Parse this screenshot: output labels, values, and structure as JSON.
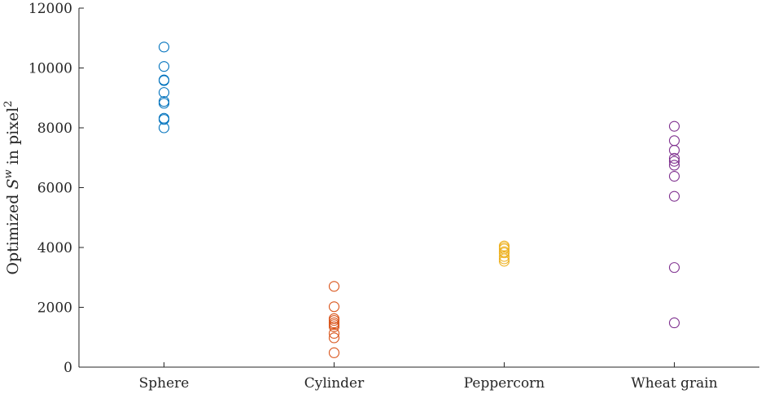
{
  "chart_data": {
    "type": "scatter",
    "categories": [
      "Sphere",
      "Cylinder",
      "Peppercorn",
      "Wheat grain"
    ],
    "ylabel": {
      "pre": "Optimized ",
      "var": "S",
      "sup": "w",
      "mid": " in pixel",
      "exp": "2"
    },
    "ylim": [
      0,
      12000
    ],
    "yticks": [
      0,
      2000,
      4000,
      6000,
      8000,
      10000,
      12000
    ],
    "grid": false,
    "series": [
      {
        "category": "Sphere",
        "color": "#0072BD",
        "values": [
          10700,
          10050,
          9600,
          9580,
          9180,
          8880,
          8820,
          8320,
          8280,
          8000
        ]
      },
      {
        "category": "Cylinder",
        "color": "#D95319",
        "values": [
          2700,
          2020,
          1620,
          1560,
          1480,
          1420,
          1350,
          1130,
          980,
          480
        ]
      },
      {
        "category": "Peppercorn",
        "color": "#EDB120",
        "values": [
          4050,
          4000,
          3950,
          3860,
          3820,
          3700,
          3620,
          3540
        ]
      },
      {
        "category": "Wheat grain",
        "color": "#7E2F8E",
        "values": [
          8050,
          7570,
          7250,
          6980,
          6880,
          6750,
          6380,
          5710,
          3330,
          1480
        ]
      }
    ]
  }
}
